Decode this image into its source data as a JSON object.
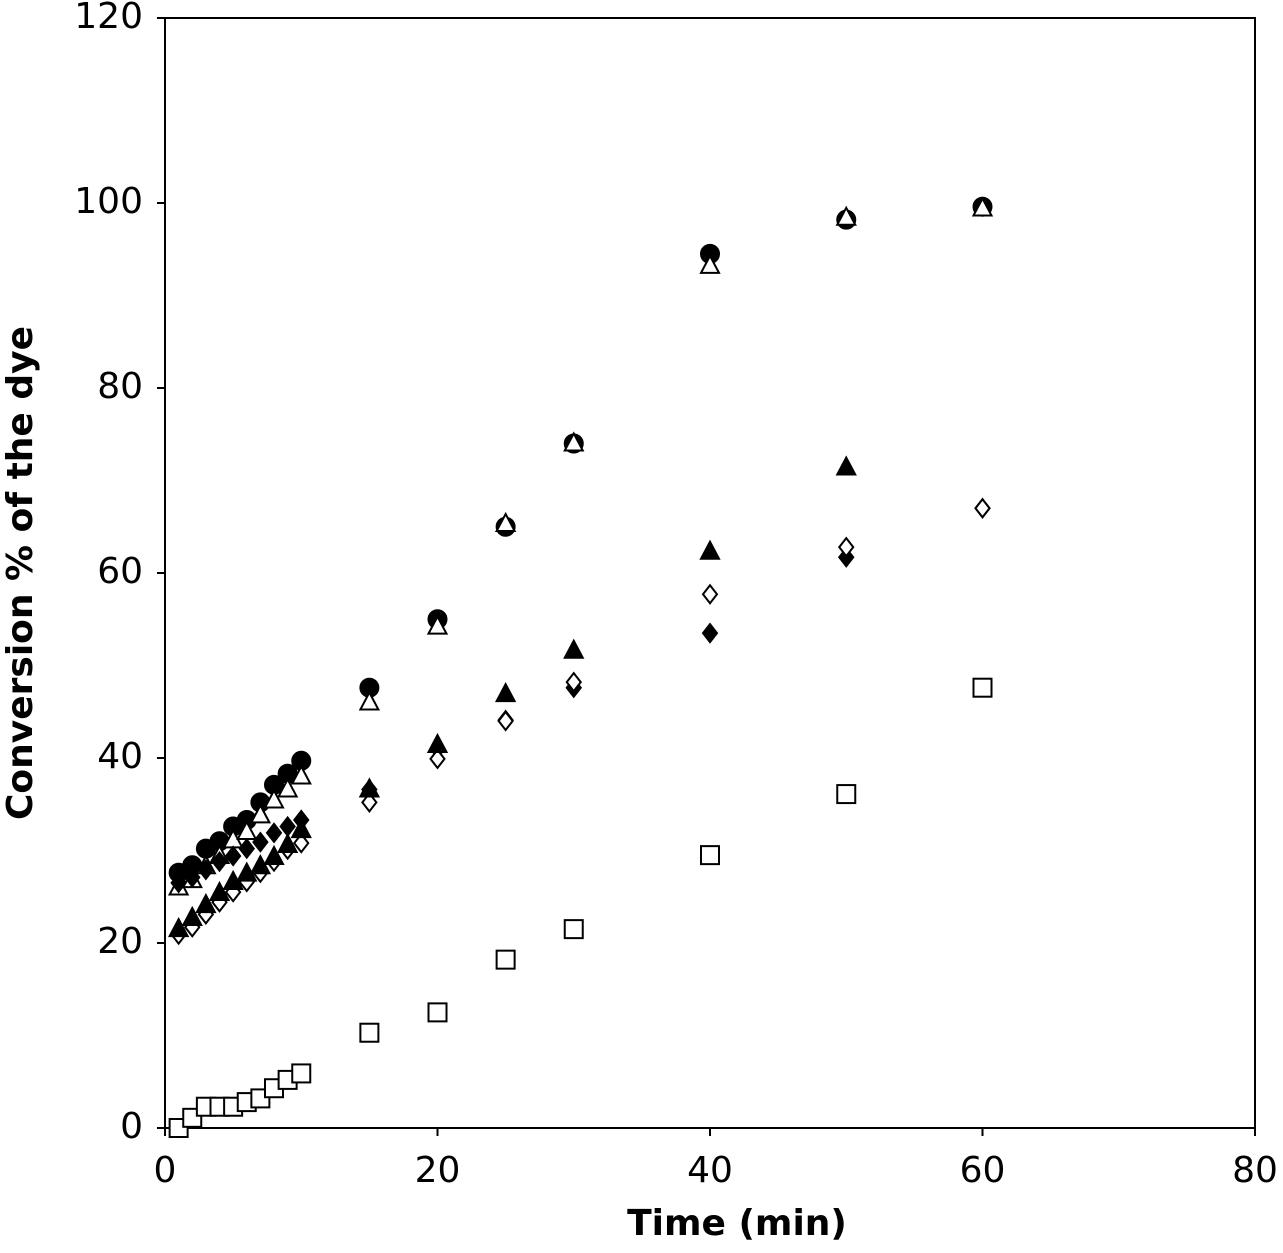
{
  "chart_data": {
    "type": "scatter",
    "x_label": "Time (min)",
    "y_label": "Conversion % of the dye",
    "x": [
      1,
      2,
      3,
      4,
      5,
      6,
      7,
      8,
      9,
      10,
      15,
      20,
      25,
      30,
      40,
      50,
      60
    ],
    "series": [
      {
        "marker": "circle",
        "filled": true,
        "color": "#000000",
        "values": [
          27.6,
          28.4,
          30.2,
          31,
          32.6,
          33.3,
          35.2,
          37.1,
          38.3,
          39.7,
          47.6,
          55,
          65,
          74,
          94.5,
          98.2,
          99.6
        ]
      },
      {
        "marker": "triangle",
        "filled": false,
        "color": "#000000",
        "values": [
          26,
          26.8,
          28.3,
          29.4,
          31.1,
          32,
          33.8,
          35.4,
          36.6,
          38,
          46,
          54.2,
          65.3,
          74,
          93.2,
          98.4,
          99.4
        ]
      },
      {
        "marker": "diamond",
        "filled": true,
        "color": "#000000",
        "values": [
          26.5,
          27.1,
          27.9,
          28.8,
          29.4,
          30.2,
          30.9,
          31.9,
          32.6,
          33.3,
          36.6,
          41,
          44.1,
          47.6,
          53.5,
          61.7,
          67
        ]
      },
      {
        "marker": "diamond",
        "filled": false,
        "color": "#000000",
        "values": [
          20.9,
          21.7,
          23.1,
          24.4,
          25.5,
          26.6,
          27.6,
          28.8,
          30.1,
          30.8,
          35.2,
          39.9,
          44,
          48.2,
          57.7,
          62.8,
          67
        ]
      },
      {
        "marker": "triangle",
        "filled": true,
        "color": "#000000",
        "values": [
          21.5,
          22.7,
          24.1,
          25.4,
          26.6,
          27.5,
          28.3,
          29.3,
          30.6,
          32.2,
          36.6,
          41.4,
          46.9,
          51.6,
          62.3,
          71.4,
          null
        ]
      },
      {
        "marker": "square",
        "filled": false,
        "color": "#000000",
        "values": [
          0,
          1.1,
          2.3,
          2.3,
          2.3,
          2.8,
          3.2,
          4.3,
          5.2,
          5.9,
          10.3,
          12.5,
          18.2,
          21.5,
          29.5,
          36.1,
          47.6
        ]
      }
    ],
    "xlim": [
      0,
      80
    ],
    "xticks": [
      0,
      20,
      40,
      60,
      80
    ],
    "ylim": [
      0,
      120
    ],
    "yticks": [
      0,
      20,
      40,
      60,
      80,
      100,
      120
    ]
  }
}
